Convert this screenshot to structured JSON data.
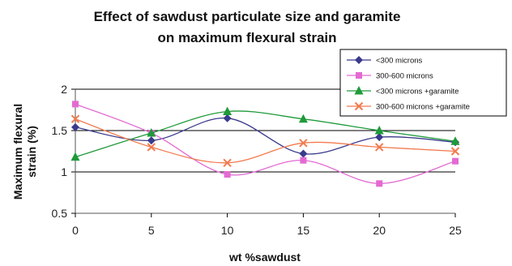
{
  "chart_data": {
    "type": "line",
    "title_line1": "Effect of sawdust  particulate size and garamite",
    "title_line2": "on maximum flexural strain",
    "xlabel": "wt %sawdust",
    "ylabel_line1": "Maximum flexural",
    "ylabel_line2": "strain (%)",
    "x": [
      0,
      5,
      10,
      15,
      20,
      25
    ],
    "xticks": [
      "0",
      "5",
      "10",
      "15",
      "20",
      "25"
    ],
    "yticks": [
      "0.5",
      "1",
      "1.5",
      "2"
    ],
    "ylim": [
      0.5,
      2
    ],
    "xlim": [
      0,
      25
    ],
    "grid": "horizontal",
    "legend_position": "top-right",
    "series": [
      {
        "name": "<300 microns",
        "values": [
          1.54,
          1.38,
          1.65,
          1.22,
          1.42,
          1.36
        ],
        "color": "#3a3a8c",
        "marker": "diamond"
      },
      {
        "name": "300-600 microns",
        "values": [
          1.82,
          1.47,
          0.97,
          1.14,
          0.86,
          1.13
        ],
        "color": "#e36ad2",
        "marker": "square"
      },
      {
        "name": "<300 microns +garamite",
        "values": [
          1.18,
          1.47,
          1.73,
          1.64,
          1.5,
          1.37
        ],
        "color": "#1f9a3a",
        "marker": "triangle"
      },
      {
        "name": "300-600 microns +garamite",
        "values": [
          1.64,
          1.3,
          1.11,
          1.35,
          1.3,
          1.25
        ],
        "color": "#f27a4e",
        "marker": "x"
      }
    ]
  }
}
